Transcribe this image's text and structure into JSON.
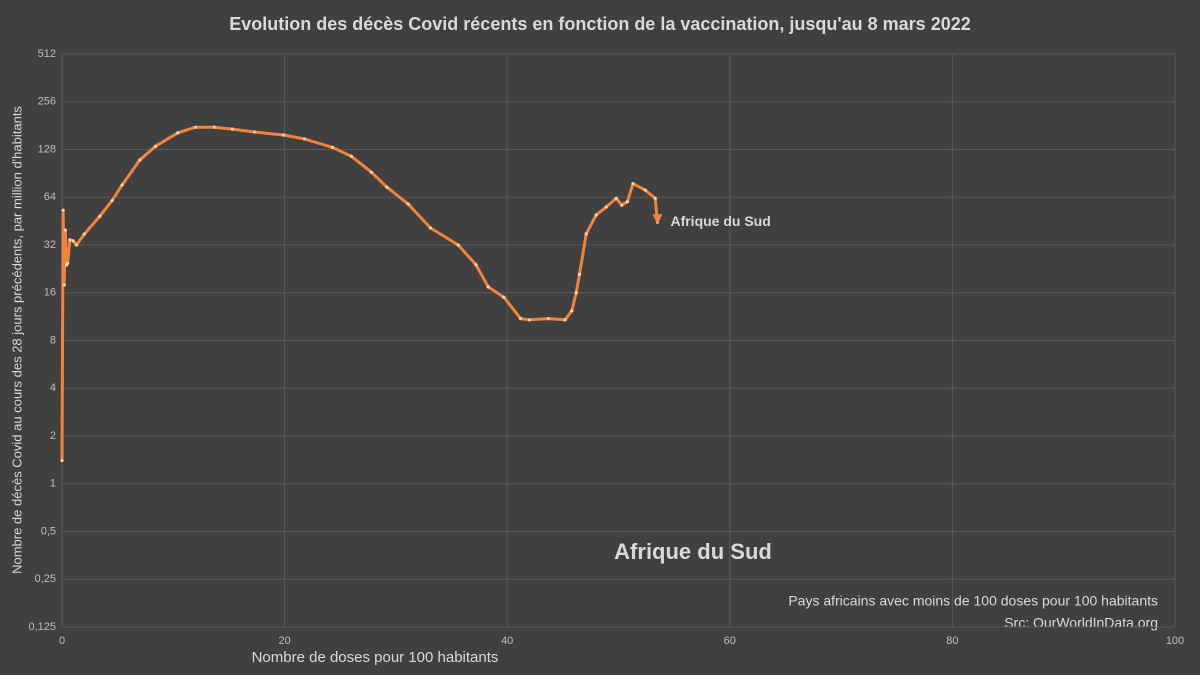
{
  "chart_data": {
    "type": "line",
    "title": "Evolution des décès Covid récents en fonction de la vaccination, jusqu'au 8 mars 2022",
    "x_label": "Nombre de doses pour 100 habitants",
    "y_label": "Nombre de décès Covid au cours des 28 jours précédents, par million d'habitants",
    "series": [
      {
        "name": "Afrique du Sud",
        "color": "#f0843c",
        "x": [
          0,
          0.1,
          0.2,
          0.3,
          0.4,
          0.5,
          0.7,
          1,
          1.3,
          2,
          3.4,
          4.5,
          5.4,
          7,
          8.4,
          10.4,
          12,
          13.7,
          15.3,
          17.3,
          19.9,
          21.8,
          24.3,
          26,
          27.8,
          29.2,
          31.1,
          33.1,
          35.6,
          37.2,
          38.3,
          39.7,
          41.2,
          42,
          43.7,
          45.2,
          45.8,
          46.2,
          46.5,
          47.1,
          48,
          48.9,
          49.8,
          50.3,
          50.8,
          51.3,
          52.4,
          53.3,
          53.5
        ],
        "values": [
          1.4,
          53,
          17.9,
          39.7,
          23.9,
          24.5,
          34.5,
          34,
          32,
          37.5,
          48.6,
          61,
          76.5,
          110,
          134,
          163,
          177,
          177,
          172,
          165,
          158,
          149,
          132,
          116,
          92,
          74,
          58,
          41,
          32,
          24,
          17.4,
          15,
          11,
          10.8,
          11,
          10.8,
          12.3,
          16,
          20.9,
          37.6,
          49.5,
          55.6,
          63,
          57,
          60,
          78,
          71,
          63,
          44.5
        ]
      }
    ],
    "xlim": [
      0,
      100
    ],
    "xticks": [
      0,
      20,
      40,
      60,
      80,
      100
    ],
    "ylim": [
      0.125,
      512
    ],
    "log_scale_y": true,
    "yticks": [
      {
        "value": 0.125,
        "label": "0,125"
      },
      {
        "value": 0.25,
        "label": "0,25"
      },
      {
        "value": 0.5,
        "label": "0,5"
      },
      1,
      2,
      4,
      8,
      16,
      32,
      64,
      128,
      256,
      512
    ],
    "grid": true,
    "annotations": [
      "Afrique du Sud",
      "Pays africains avec moins de 100 doses pour 100 habitants",
      "Src: OurWorldInData.org"
    ]
  }
}
